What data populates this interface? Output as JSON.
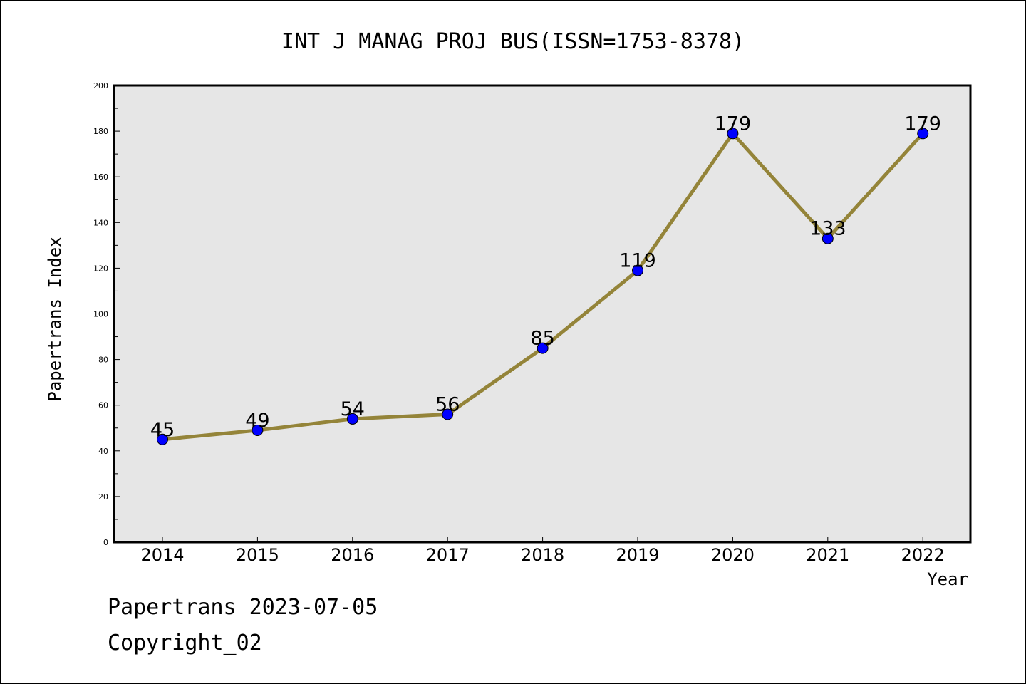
{
  "chart_data": {
    "type": "line",
    "title": "INT J MANAG PROJ BUS(ISSN=1753-8378)",
    "xlabel": "Year",
    "ylabel": "Papertrans Index",
    "categories": [
      "2014",
      "2015",
      "2016",
      "2017",
      "2018",
      "2019",
      "2020",
      "2021",
      "2022"
    ],
    "values": [
      45,
      49,
      54,
      56,
      85,
      119,
      179,
      133,
      179
    ],
    "ylim": [
      0,
      200
    ],
    "yticks": [
      0,
      20,
      40,
      60,
      80,
      100,
      120,
      140,
      160,
      180,
      200
    ],
    "grid": false,
    "line_color": "#948439",
    "marker_color": "#0000ff",
    "plot_background": "#e6e6e6"
  },
  "footer": {
    "line1": "Papertrans 2023-07-05",
    "line2": "Copyright_02"
  }
}
